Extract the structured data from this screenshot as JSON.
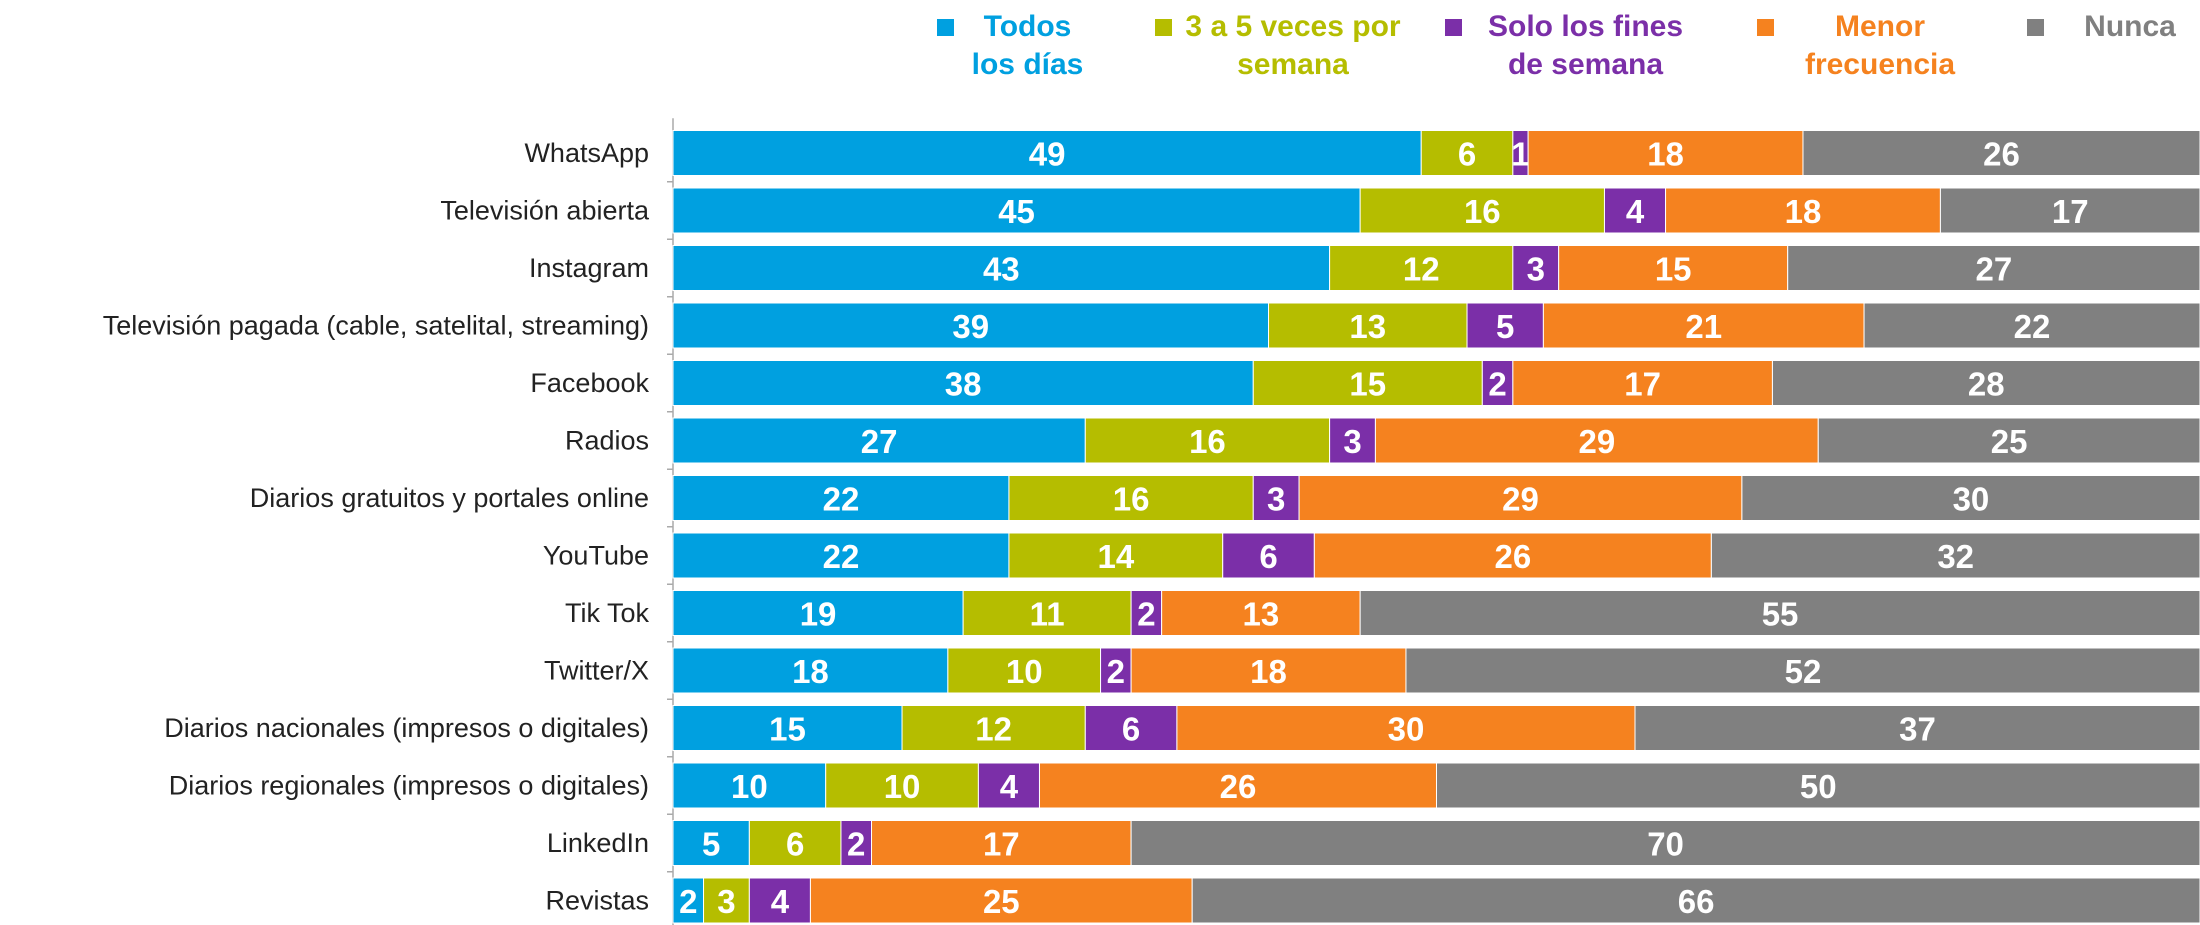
{
  "chart_data": {
    "type": "stacked_bar_horizontal",
    "categories": [
      "WhatsApp",
      "Televisión abierta",
      "Instagram",
      "Televisión pagada (cable, satelital, streaming)",
      "Facebook",
      "Radios",
      "Diarios gratuitos y portales online",
      "YouTube",
      "Tik Tok",
      "Twitter/X",
      "Diarios nacionales (impresos o digitales)",
      "Diarios regionales (impresos o digitales)",
      "LinkedIn",
      "Revistas"
    ],
    "series": [
      {
        "name": "Todos los días",
        "color": "#00a0e0",
        "values": [
          49,
          45,
          43,
          39,
          38,
          27,
          22,
          22,
          19,
          18,
          15,
          10,
          5,
          2
        ]
      },
      {
        "name": "3 a 5 veces por semana",
        "color": "#b5bd00",
        "values": [
          6,
          16,
          12,
          13,
          15,
          16,
          16,
          14,
          11,
          10,
          12,
          10,
          6,
          3
        ]
      },
      {
        "name": "Solo los fines de semana",
        "color": "#7b2fa8",
        "values": [
          1,
          4,
          3,
          5,
          2,
          3,
          3,
          6,
          2,
          2,
          6,
          4,
          2,
          4
        ]
      },
      {
        "name": "Menor frecuencia",
        "color": "#f5821f",
        "values": [
          18,
          18,
          15,
          21,
          17,
          29,
          29,
          26,
          13,
          18,
          30,
          26,
          17,
          25
        ]
      },
      {
        "name": "Nunca",
        "color": "#808080",
        "values": [
          26,
          17,
          27,
          22,
          28,
          25,
          30,
          32,
          55,
          52,
          37,
          50,
          70,
          66
        ]
      }
    ],
    "xlim": [
      0,
      100
    ],
    "legend": "top"
  }
}
